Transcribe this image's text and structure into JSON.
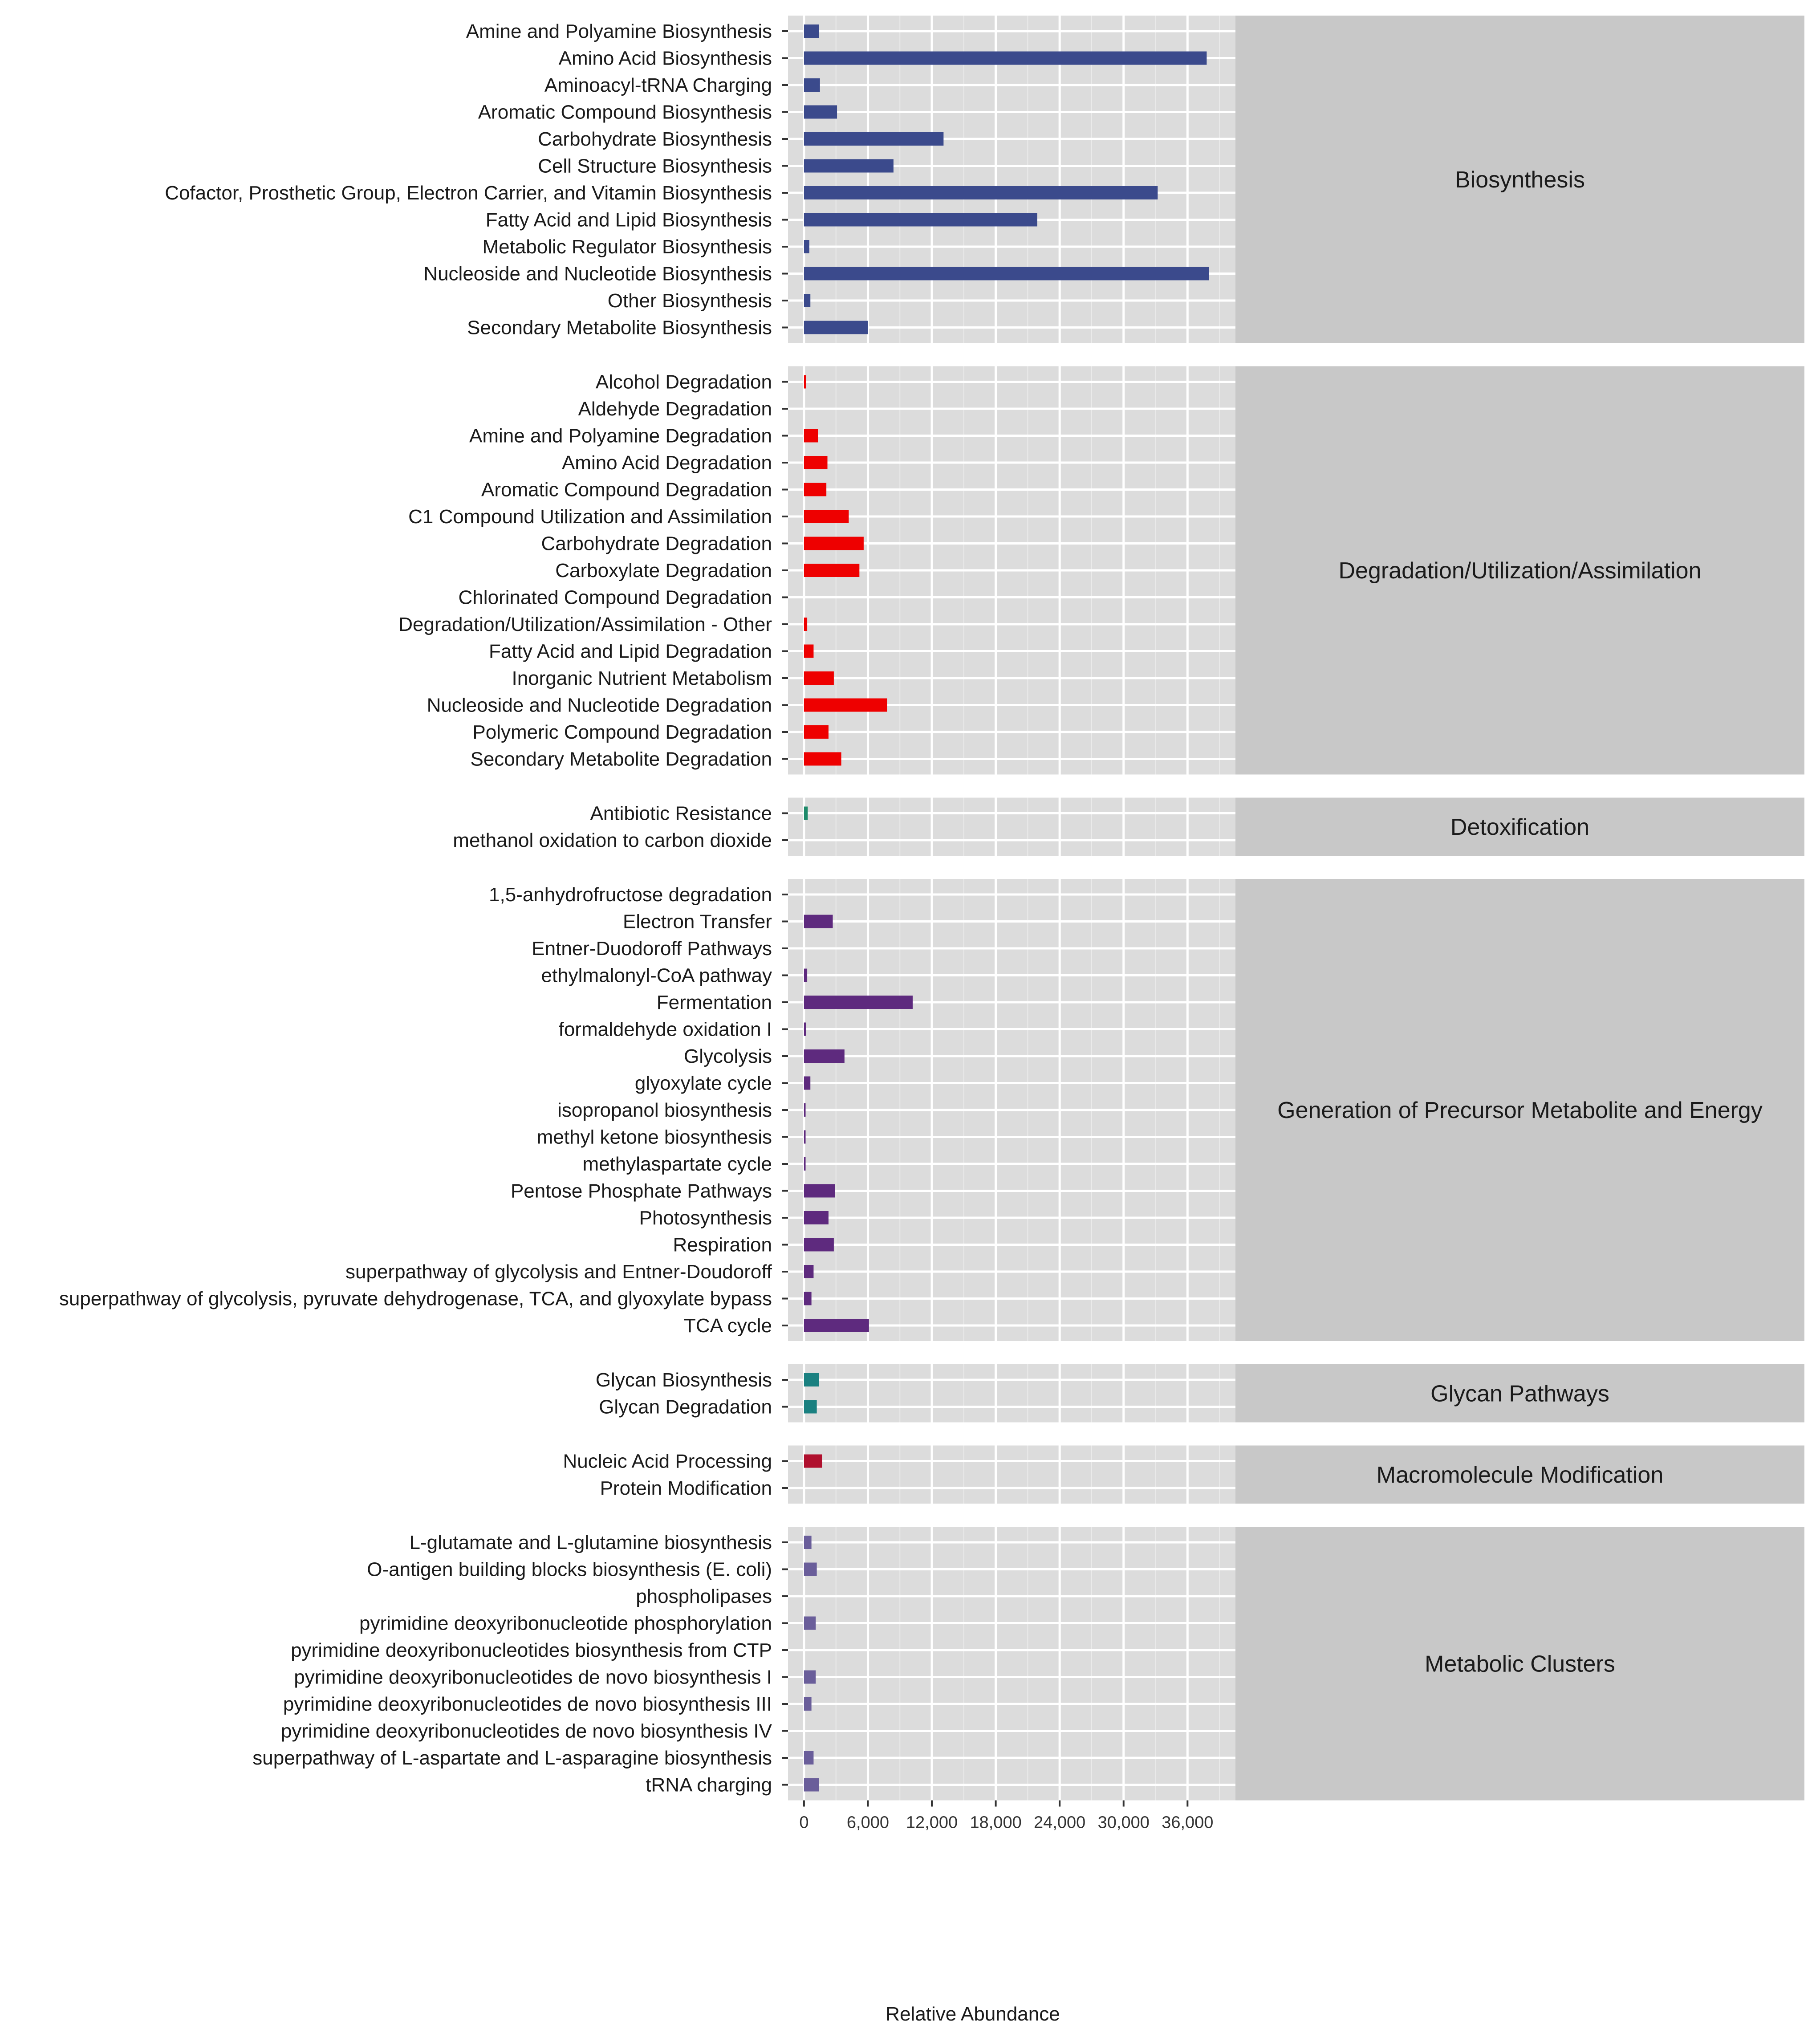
{
  "chart_data": {
    "type": "bar",
    "orientation": "horizontal",
    "xlabel": "Relative Abundance",
    "xlim": [
      -1500,
      40500
    ],
    "x_ticks": [
      "0",
      "6,000",
      "12,000",
      "18,000",
      "24,000",
      "30,000",
      "36,000"
    ],
    "grid": true,
    "panels": [
      {
        "name": "Biosynthesis",
        "color": "#3b4a8c",
        "categories": [
          "Amine and Polyamine Biosynthesis",
          "Amino Acid Biosynthesis",
          "Aminoacyl-tRNA Charging",
          "Aromatic Compound Biosynthesis",
          "Carbohydrate Biosynthesis",
          "Cell Structure Biosynthesis",
          "Cofactor, Prosthetic Group, Electron Carrier, and Vitamin Biosynthesis",
          "Fatty Acid and Lipid Biosynthesis",
          "Metabolic Regulator Biosynthesis",
          "Nucleoside and Nucleotide Biosynthesis",
          "Other Biosynthesis",
          "Secondary Metabolite Biosynthesis"
        ],
        "values": [
          1400,
          37800,
          1500,
          3100,
          13100,
          8400,
          33200,
          21900,
          500,
          38000,
          600,
          6000
        ]
      },
      {
        "name": "Degradation/Utilization/Assimilation",
        "color": "#ee0000",
        "categories": [
          "Alcohol Degradation",
          "Aldehyde Degradation",
          "Amine and Polyamine Degradation",
          "Amino Acid Degradation",
          "Aromatic Compound Degradation",
          "C1 Compound Utilization and Assimilation",
          "Carbohydrate Degradation",
          "Carboxylate Degradation",
          "Chlorinated Compound Degradation",
          "Degradation/Utilization/Assimilation - Other",
          "Fatty Acid and Lipid Degradation",
          "Inorganic Nutrient Metabolism",
          "Nucleoside and Nucleotide Degradation",
          "Polymeric Compound Degradation",
          "Secondary Metabolite Degradation"
        ],
        "values": [
          200,
          0,
          1300,
          2200,
          2100,
          4200,
          5600,
          5200,
          0,
          300,
          900,
          2800,
          7800,
          2300,
          3500
        ]
      },
      {
        "name": "Detoxification",
        "color": "#1e8a6a",
        "categories": [
          "Antibiotic Resistance",
          "methanol oxidation to carbon dioxide"
        ],
        "values": [
          350,
          0
        ]
      },
      {
        "name": "Generation of Precursor Metabolite and Energy",
        "color": "#5e2a7e",
        "categories": [
          "1,5-anhydrofructose degradation",
          "Electron Transfer",
          "Entner-Duodoroff Pathways",
          "ethylmalonyl-CoA pathway",
          "Fermentation",
          "formaldehyde oxidation I",
          "Glycolysis",
          "glyoxylate cycle",
          "isopropanol biosynthesis",
          "methyl ketone biosynthesis",
          "methylaspartate cycle",
          "Pentose Phosphate Pathways",
          "Photosynthesis",
          "Respiration",
          "superpathway of glycolysis and Entner-Doudoroff",
          "superpathway of glycolysis, pyruvate dehydrogenase, TCA, and glyoxylate bypass",
          "TCA cycle"
        ],
        "values": [
          0,
          2700,
          0,
          300,
          10200,
          200,
          3800,
          600,
          150,
          150,
          150,
          2900,
          2300,
          2800,
          900,
          700,
          6100
        ]
      },
      {
        "name": "Glycan Pathways",
        "color": "#1a8080",
        "categories": [
          "Glycan Biosynthesis",
          "Glycan Degradation"
        ],
        "values": [
          1400,
          1200
        ]
      },
      {
        "name": "Macromolecule Modification",
        "color": "#b0102e",
        "categories": [
          "Nucleic Acid Processing",
          "Protein Modification"
        ],
        "values": [
          1700,
          0
        ]
      },
      {
        "name": "Metabolic Clusters",
        "color": "#6a5e9a",
        "categories": [
          "L-glutamate and L-glutamine biosynthesis",
          "O-antigen building blocks biosynthesis (E. coli)",
          "phospholipases",
          "pyrimidine deoxyribonucleotide phosphorylation",
          "pyrimidine deoxyribonucleotides biosynthesis from CTP",
          "pyrimidine deoxyribonucleotides de novo biosynthesis I",
          "pyrimidine deoxyribonucleotides de novo biosynthesis III",
          "pyrimidine deoxyribonucleotides de novo biosynthesis IV",
          "superpathway of L-aspartate and L-asparagine biosynthesis",
          "tRNA charging"
        ],
        "values": [
          700,
          1200,
          0,
          1100,
          0,
          1100,
          700,
          0,
          900,
          1400
        ]
      }
    ]
  }
}
